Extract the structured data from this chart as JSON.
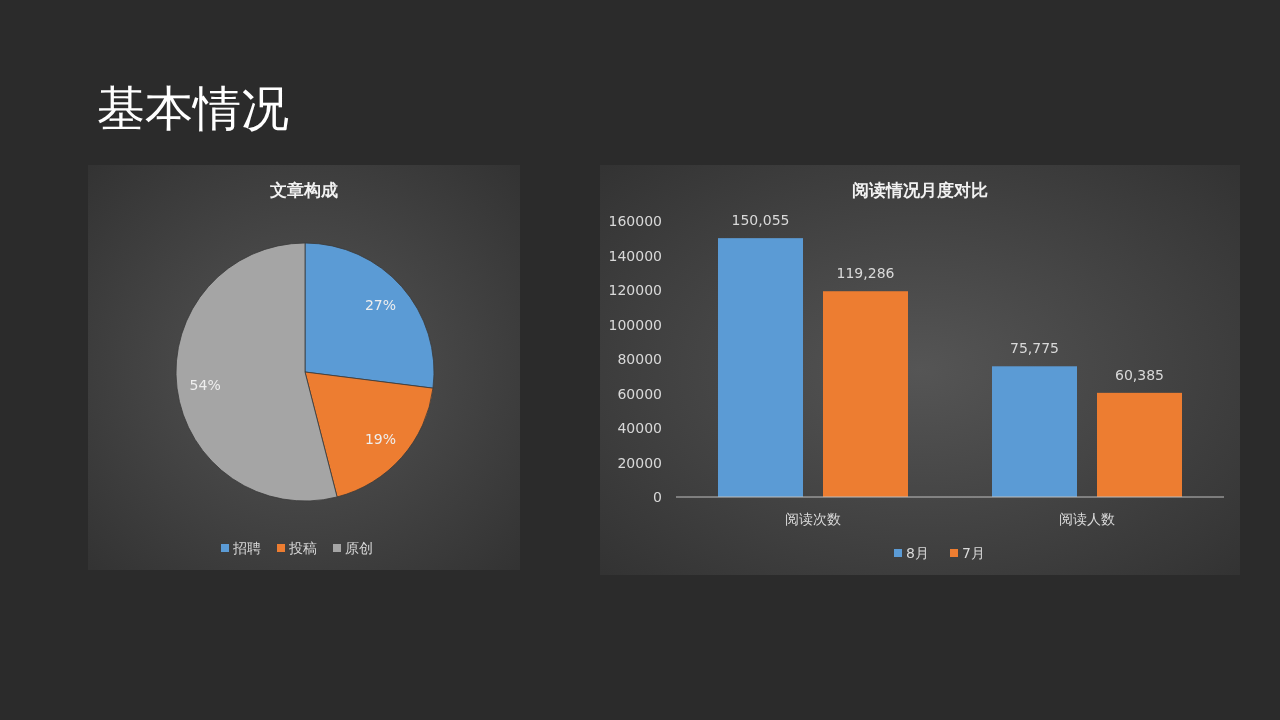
{
  "chart_data": [
    {
      "type": "pie",
      "title": "文章构成",
      "annotations": [
        "基本情况"
      ],
      "categories": [
        "招聘",
        "投稿",
        "原创"
      ],
      "values": [
        27,
        19,
        54
      ],
      "colors": [
        "#5b9bd5",
        "#ed7d31",
        "#a5a5a5"
      ],
      "value_labels": [
        "27%",
        "19%",
        "54%"
      ],
      "legend": "bottom"
    },
    {
      "type": "bar",
      "title": "阅读情况月度对比",
      "categories": [
        "阅读次数",
        "阅读人数"
      ],
      "series": [
        {
          "name": "8月",
          "color": "#5b9bd5",
          "values": [
            150055,
            75775
          ],
          "value_labels": [
            "150,055",
            "75,775"
          ]
        },
        {
          "name": "7月",
          "color": "#ed7d31",
          "values": [
            119286,
            60385
          ],
          "value_labels": [
            "119,286",
            "60,385"
          ]
        }
      ],
      "ylim": [
        0,
        160000
      ],
      "yticks": [
        0,
        20000,
        40000,
        60000,
        80000,
        100000,
        120000,
        140000,
        160000
      ],
      "legend": "bottom"
    }
  ]
}
